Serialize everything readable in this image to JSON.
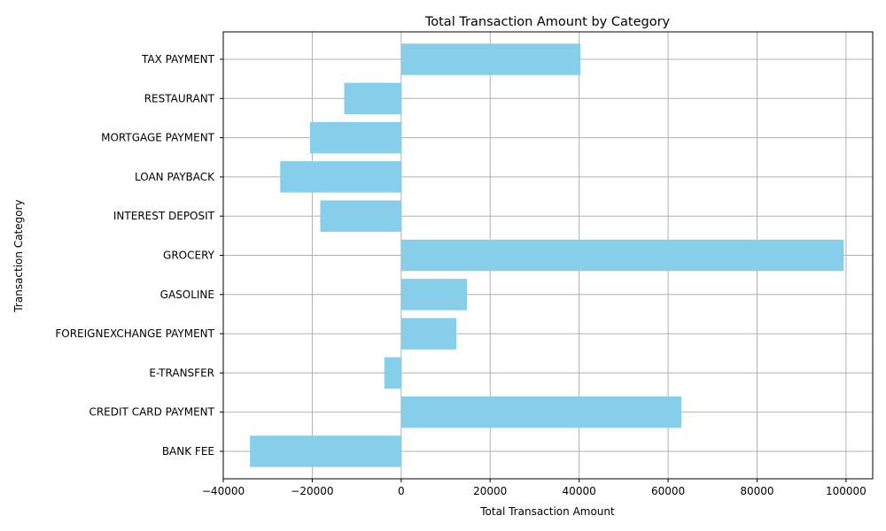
{
  "chart_data": {
    "type": "bar",
    "orientation": "horizontal",
    "title": "Total Transaction Amount by Category",
    "xlabel": "Total Transaction Amount",
    "ylabel": "Transaction Category",
    "categories": [
      "BANK FEE",
      "CREDIT CARD PAYMENT",
      "E-TRANSFER",
      "FOREIGNEXCHANGE PAYMENT",
      "GASOLINE",
      "GROCERY",
      "INTEREST DEPOSIT",
      "LOAN PAYBACK",
      "MORTGAGE PAYMENT",
      "RESTAURANT",
      "TAX PAYMENT"
    ],
    "values": [
      -34000,
      63000,
      -3800,
      12400,
      14800,
      99500,
      -18200,
      -27200,
      -20500,
      -12800,
      40300
    ],
    "xlim": [
      -40000,
      106000
    ],
    "xticks": [
      -40000,
      -20000,
      0,
      20000,
      40000,
      60000,
      80000,
      100000
    ],
    "grid": true,
    "bar_color": "#87ceeb",
    "grid_color": "#b0b0b0"
  }
}
